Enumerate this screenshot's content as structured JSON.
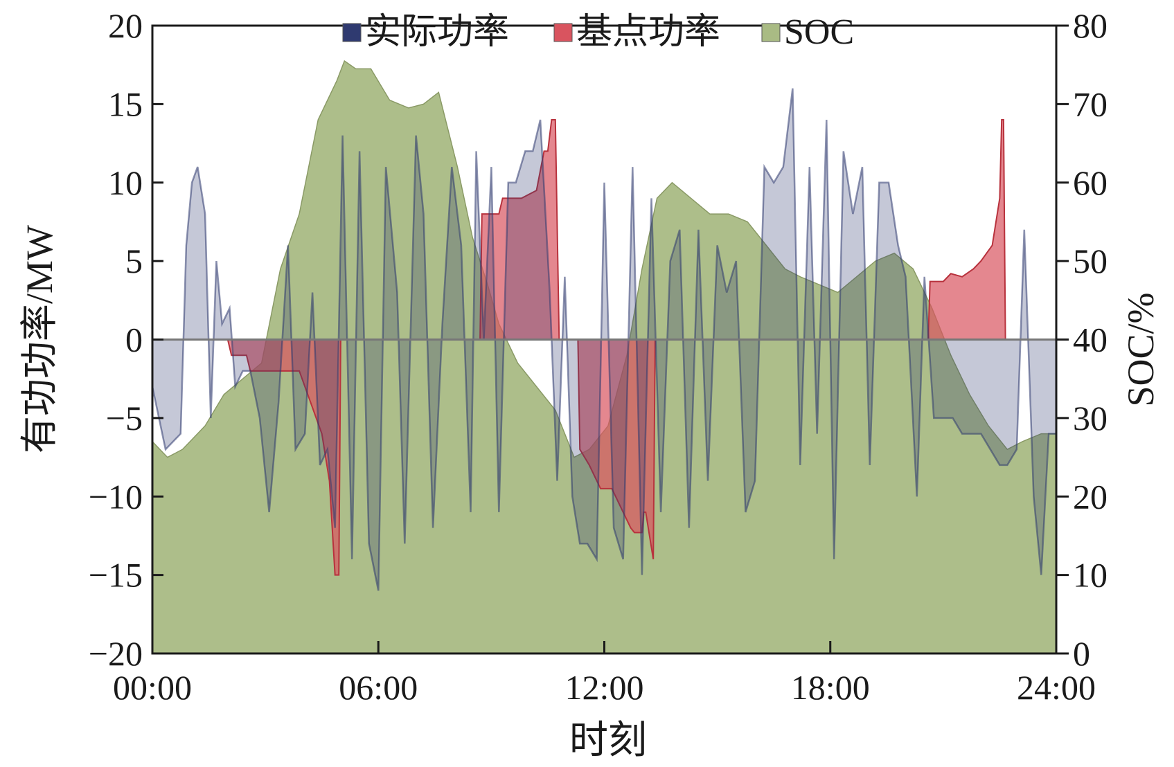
{
  "chart_data": {
    "type": "area",
    "xlabel": "时刻",
    "ylabel_left": "有功功率/MW",
    "ylabel_right": "SOC/%",
    "x_unit": "hours",
    "x_ticks": [
      "00:00",
      "06:00",
      "12:00",
      "18:00",
      "24:00"
    ],
    "xlim": [
      0,
      24
    ],
    "ylim_left": [
      -20,
      20
    ],
    "y_ticks_left": [
      "20",
      "15",
      "10",
      "5",
      "0",
      "−5",
      "−10",
      "−15",
      "−20"
    ],
    "ylim_right": [
      0,
      80
    ],
    "y_ticks_right": [
      "80",
      "70",
      "60",
      "50",
      "40",
      "30",
      "20",
      "10",
      "0"
    ],
    "legend_position": "top-center",
    "legend": [
      {
        "label": "实际功率",
        "color": "#2f3a70"
      },
      {
        "label": "基点功率",
        "color": "#d9545f"
      },
      {
        "label": "SOC",
        "color": "#a9bb84"
      }
    ],
    "series": [
      {
        "name": "SOC",
        "axis": "right",
        "color": "#a9bb84",
        "x": [
          0,
          0.4,
          0.8,
          1.4,
          1.9,
          2.4,
          2.9,
          3.4,
          3.9,
          4.4,
          4.9,
          5.1,
          5.4,
          5.8,
          6.3,
          6.8,
          7.2,
          7.6,
          8.1,
          8.5,
          8.9,
          9.2,
          9.7,
          10.2,
          10.7,
          11.2,
          11.6,
          12.1,
          12.6,
          13.0,
          13.4,
          13.8,
          14.3,
          14.8,
          15.3,
          15.8,
          16.3,
          16.8,
          17.2,
          17.7,
          18.2,
          18.7,
          19.2,
          19.7,
          20.2,
          20.7,
          21.2,
          21.7,
          22.2,
          22.7,
          23.1,
          23.6,
          24
        ],
        "values": [
          27,
          25,
          26,
          29,
          33,
          35,
          37,
          49,
          56,
          68,
          73,
          75.5,
          74.5,
          74.5,
          70.5,
          69.5,
          70,
          71.5,
          62,
          53,
          47,
          42,
          37,
          34,
          31,
          25,
          26,
          29,
          38,
          49,
          58,
          60,
          58,
          56,
          56,
          55,
          52,
          49,
          48,
          47,
          46,
          48,
          50,
          51,
          49,
          44,
          38,
          33,
          29,
          26,
          27,
          28,
          28
        ]
      },
      {
        "name": "基点功率",
        "axis": "left",
        "color": "#d9545f",
        "x": [
          0,
          2.0,
          2.1,
          2.5,
          2.6,
          3.0,
          3.4,
          3.9,
          4.2,
          4.5,
          4.7,
          4.85,
          4.95,
          5.0,
          8.7,
          8.75,
          9.2,
          9.3,
          9.8,
          10.2,
          10.4,
          10.5,
          10.6,
          10.7,
          10.8,
          11.0,
          11.1,
          11.3,
          11.35,
          11.6,
          11.9,
          12.2,
          12.5,
          12.7,
          12.8,
          13.0,
          13.05,
          13.1,
          13.3,
          13.35,
          20.6,
          20.65,
          21.0,
          21.2,
          21.5,
          21.8,
          22.0,
          22.3,
          22.5,
          22.55,
          22.6,
          22.65,
          24
        ],
        "values": [
          0,
          0,
          -1.0,
          -1.0,
          -2.0,
          -2.0,
          -2.0,
          -2.0,
          -4.0,
          -6.0,
          -9.0,
          -15.0,
          -15.0,
          0,
          0,
          8.0,
          8.0,
          9.0,
          9.0,
          9.5,
          12.0,
          12.0,
          14.0,
          14.0,
          0,
          0,
          0,
          0,
          -7.0,
          -8.0,
          -9.5,
          -9.5,
          -11.0,
          -12.0,
          -12.3,
          -12.3,
          -11.0,
          -11.0,
          -14.0,
          0,
          0,
          3.7,
          3.7,
          4.2,
          4.0,
          4.5,
          5.0,
          6.0,
          9.0,
          14.0,
          14.0,
          0,
          0
        ]
      },
      {
        "name": "实际功率",
        "axis": "left",
        "color": "#2f3a70",
        "x": [
          0,
          0.35,
          0.75,
          0.9,
          1.05,
          1.2,
          1.4,
          1.55,
          1.7,
          1.85,
          2.05,
          2.2,
          2.4,
          2.6,
          2.85,
          3.1,
          3.35,
          3.6,
          3.8,
          4.05,
          4.25,
          4.45,
          4.65,
          4.85,
          5.05,
          5.3,
          5.5,
          5.75,
          6.0,
          6.2,
          6.5,
          6.7,
          7.0,
          7.2,
          7.45,
          7.7,
          7.95,
          8.2,
          8.45,
          8.6,
          8.8,
          9.0,
          9.2,
          9.45,
          9.65,
          9.9,
          10.1,
          10.3,
          10.55,
          10.75,
          10.95,
          11.15,
          11.35,
          11.55,
          11.8,
          12.0,
          12.25,
          12.5,
          12.75,
          13.0,
          13.25,
          13.5,
          13.75,
          14.0,
          14.25,
          14.5,
          14.75,
          15.0,
          15.25,
          15.5,
          15.75,
          16.0,
          16.25,
          16.5,
          16.75,
          17.0,
          17.2,
          17.45,
          17.65,
          17.9,
          18.1,
          18.35,
          18.6,
          18.85,
          19.05,
          19.3,
          19.55,
          19.8,
          20.0,
          20.3,
          20.5,
          20.75,
          21.0,
          21.25,
          21.5,
          21.75,
          22.0,
          22.25,
          22.5,
          22.7,
          22.95,
          23.15,
          23.4,
          23.6,
          23.8,
          24
        ],
        "values": [
          -3,
          -7,
          -6,
          6,
          10,
          11,
          8,
          -5,
          5,
          1,
          2,
          -3,
          -2,
          -2,
          -5,
          -11,
          -4,
          6,
          -7,
          -6,
          3,
          -8,
          -7,
          -12,
          13,
          -14,
          12,
          -13,
          -16,
          11,
          3,
          -13,
          13,
          8,
          -12,
          1,
          11,
          6,
          -11,
          12,
          0,
          11,
          -11,
          10,
          10,
          12,
          12,
          14,
          3,
          -9,
          4,
          -10,
          -13,
          -13,
          -14,
          10,
          -12,
          -14,
          11,
          -15,
          9,
          -11,
          5,
          7,
          -12,
          7,
          -9,
          6,
          3,
          5,
          -11,
          -9,
          11,
          10,
          11,
          16,
          -8,
          11,
          -6,
          14,
          -14,
          12,
          8,
          11,
          -8,
          10,
          10,
          6,
          4,
          -10,
          4,
          -5,
          -5,
          -5,
          -6,
          -6,
          -6,
          -7,
          -8,
          -8,
          -7,
          7,
          -10,
          -15,
          -6,
          -6
        ]
      }
    ]
  }
}
